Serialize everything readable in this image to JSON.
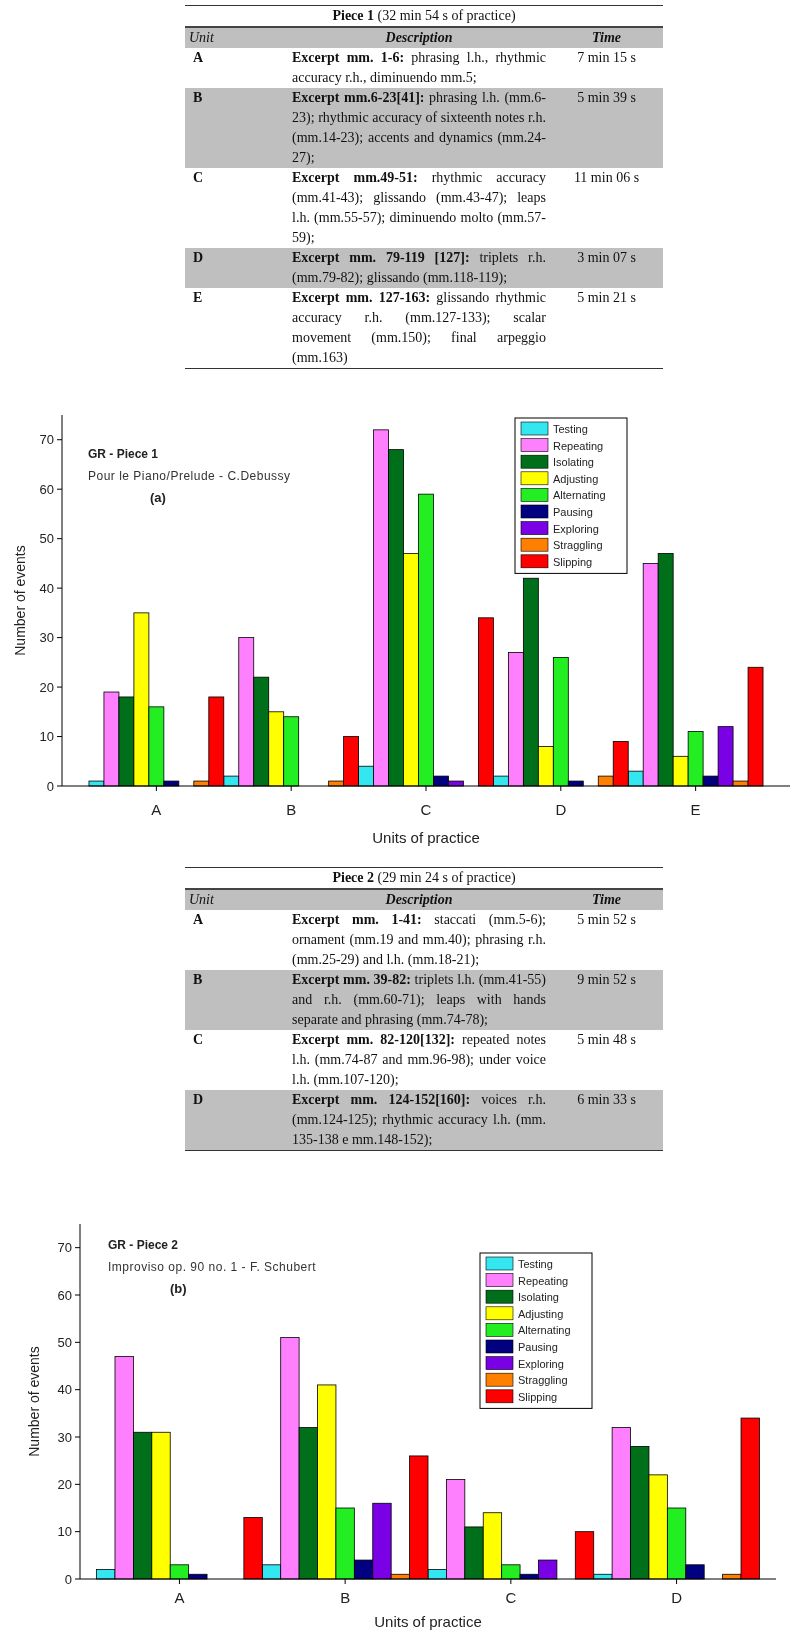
{
  "chart_data": [
    {
      "type": "other",
      "title": "Piece 1 (32 min 54 s of practice)",
      "annotations": [
        "Unit",
        "Description",
        "Time",
        "A",
        "Excerpt mm. 1-6: phrasing l.h., rhythmic accuracy r.h., diminuendo mm.5;",
        "7 min 15 s",
        "B",
        "Excerpt mm.6-23[41]: phrasing l.h. (mm.6-23); rhythmic accuracy of sixteenth notes r.h. (mm.14-23); accents and dynamics (mm.24-27);",
        "5 min 39 s",
        "C",
        "Excerpt mm.49-51: rhythmic accuracy (mm.41-43); glissando (mm.43-47); leaps l.h. (mm.55-57); diminuendo molto (mm.57-59);",
        "11 min 06 s",
        "D",
        "Excerpt mm. 79-119 [127]: triplets r.h. (mm.79-82); glissando (mm.118-119);",
        "3 min 07 s",
        "E",
        "Excerpt mm. 127-163: glissando rhythmic accuracy r.h. (mm.127-133); scalar movement (mm.150); final arpeggio (mm.163)",
        "5 min 21 s"
      ]
    },
    {
      "type": "bar",
      "title": "GR - Piece 1",
      "subtitle": "Pour le Piano/Prelude - C.Debussy",
      "annotations": [
        "(a)"
      ],
      "xlabel": "Units of practice",
      "ylabel": "Number of events",
      "categories": [
        "A",
        "B",
        "C",
        "D",
        "E"
      ],
      "ylim": [
        0,
        75
      ],
      "yticks": [
        0,
        10,
        20,
        30,
        40,
        50,
        60,
        70
      ],
      "legend": "top right",
      "series": [
        {
          "name": "Testing",
          "color": "#33e6f0",
          "values": [
            1,
            2,
            4,
            2,
            3
          ]
        },
        {
          "name": "Repeating",
          "color": "#ff80ff",
          "values": [
            19,
            30,
            72,
            27,
            45
          ]
        },
        {
          "name": "Isolating",
          "color": "#006f1a",
          "values": [
            18,
            22,
            68,
            42,
            47
          ]
        },
        {
          "name": "Adjusting",
          "color": "#ffff00",
          "values": [
            35,
            15,
            47,
            8,
            6
          ]
        },
        {
          "name": "Alternating",
          "color": "#22ee22",
          "values": [
            16,
            14,
            59,
            26,
            11
          ]
        },
        {
          "name": "Pausing",
          "color": "#000080",
          "values": [
            1,
            0,
            2,
            1,
            2
          ]
        },
        {
          "name": "Exploring",
          "color": "#7a00e6",
          "values": [
            0,
            0,
            1,
            0,
            12
          ]
        },
        {
          "name": "Straggling",
          "color": "#ff8000",
          "values": [
            1,
            1,
            0,
            2,
            1
          ]
        },
        {
          "name": "Slipping",
          "color": "#ff0000",
          "values": [
            18,
            10,
            34,
            9,
            24
          ]
        }
      ]
    },
    {
      "type": "other",
      "title": "Piece 2 (29 min 24 s of practice)",
      "annotations": [
        "Unit",
        "Description",
        "Time",
        "A",
        "Excerpt mm. 1-41: staccati (mm.5-6); ornament (mm.19 and mm.40); phrasing r.h. (mm.25-29) and l.h. (mm.18-21);",
        "5 min 52 s",
        "B",
        "Excerpt mm. 39-82: triplets l.h. (mm.41-55) and r.h. (mm.60-71); leaps with hands separate and phrasing (mm.74-78);",
        "9 min 52 s",
        "C",
        "Excerpt mm. 82-120[132]: repeated notes l.h. (mm.74-87 and mm.96-98); under voice l.h. (mm.107-120);",
        "5 min 48 s",
        "D",
        "Excerpt mm. 124-152[160]: voices r.h. (mm.124-125); rhythmic accuracy l.h. (mm. 135-138 e mm.148-152);",
        "6 min 33 s"
      ]
    },
    {
      "type": "bar",
      "title": "GR - Piece 2",
      "subtitle": "Improviso op. 90 no. 1 - F. Schubert",
      "annotations": [
        "(b)"
      ],
      "xlabel": "Units of practice",
      "ylabel": "Number of events",
      "categories": [
        "A",
        "B",
        "C",
        "D"
      ],
      "ylim": [
        0,
        75
      ],
      "yticks": [
        0,
        10,
        20,
        30,
        40,
        50,
        60,
        70
      ],
      "legend": "top right",
      "series": [
        {
          "name": "Testing",
          "color": "#33e6f0",
          "values": [
            2,
            3,
            2,
            1
          ]
        },
        {
          "name": "Repeating",
          "color": "#ff80ff",
          "values": [
            47,
            51,
            21,
            32
          ]
        },
        {
          "name": "Isolating",
          "color": "#006f1a",
          "values": [
            31,
            32,
            11,
            28
          ]
        },
        {
          "name": "Adjusting",
          "color": "#ffff00",
          "values": [
            31,
            41,
            14,
            22
          ]
        },
        {
          "name": "Alternating",
          "color": "#22ee22",
          "values": [
            3,
            15,
            3,
            15
          ]
        },
        {
          "name": "Pausing",
          "color": "#000080",
          "values": [
            1,
            4,
            1,
            3
          ]
        },
        {
          "name": "Exploring",
          "color": "#7a00e6",
          "values": [
            0,
            16,
            4,
            0
          ]
        },
        {
          "name": "Straggling",
          "color": "#ff8000",
          "values": [
            0,
            1,
            0,
            1
          ]
        },
        {
          "name": "Slipping",
          "color": "#ff0000",
          "values": [
            13,
            26,
            10,
            34
          ]
        }
      ]
    }
  ]
}
